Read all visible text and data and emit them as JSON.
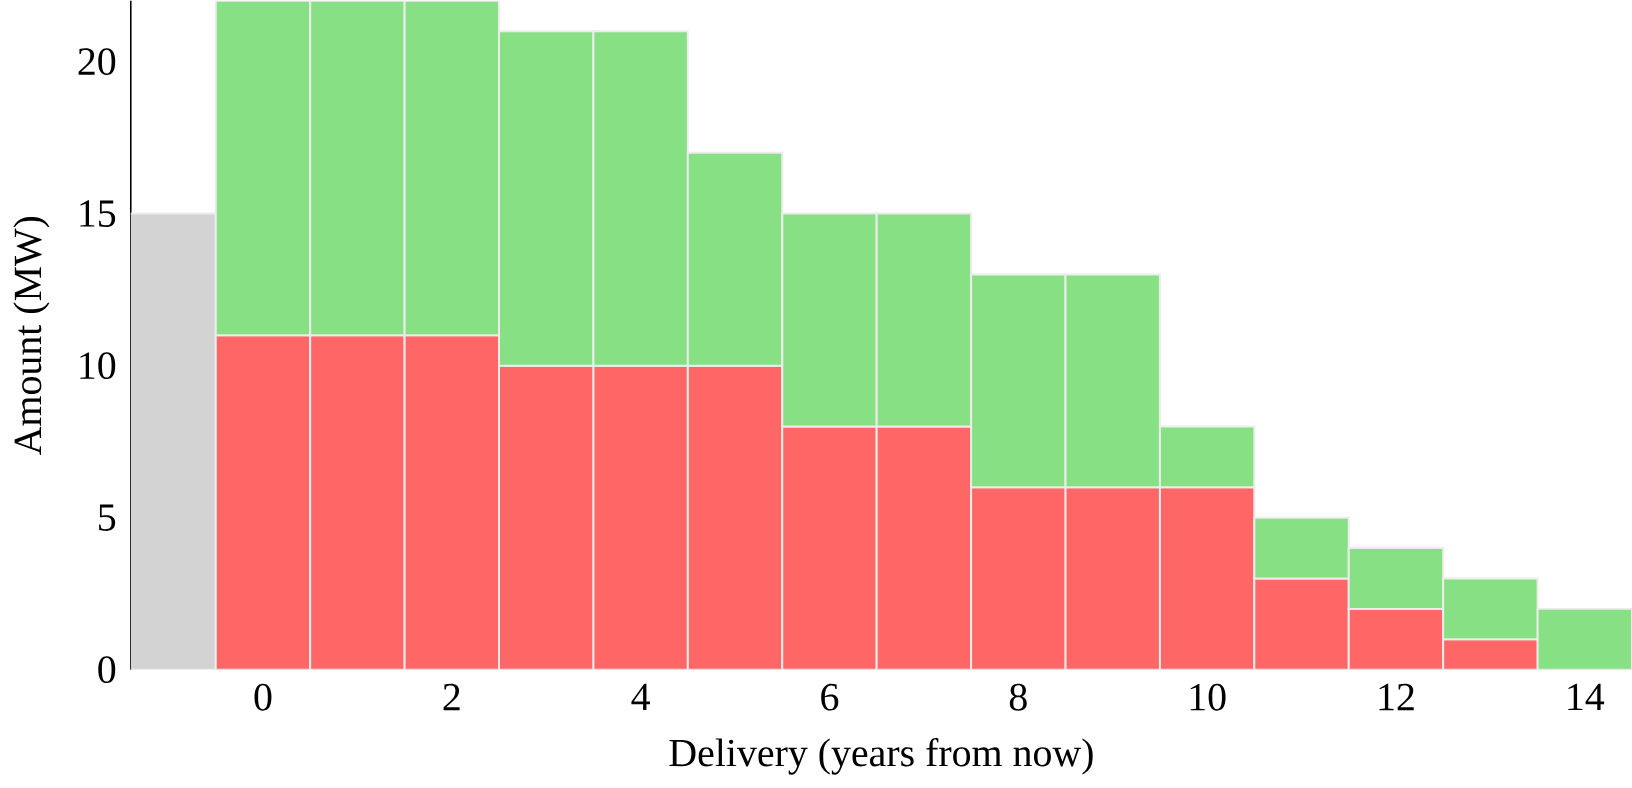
{
  "chart_data": {
    "type": "bar",
    "stacked": true,
    "xlabel": "Delivery (years from now)",
    "ylabel": "Amount (MW)",
    "x": [
      -1,
      0,
      1,
      2,
      3,
      4,
      5,
      6,
      7,
      8,
      9,
      10,
      11,
      12,
      13,
      14
    ],
    "series": [
      {
        "color": "#d3d3d3",
        "values": [
          15,
          null,
          null,
          null,
          null,
          null,
          null,
          null,
          null,
          null,
          null,
          null,
          null,
          null,
          null,
          null
        ]
      },
      {
        "color": "#ff6666",
        "values": [
          null,
          11,
          11,
          11,
          10,
          10,
          10,
          8,
          8,
          6,
          6,
          6,
          3,
          2,
          1,
          0
        ]
      },
      {
        "color": "#88e085",
        "values": [
          null,
          11,
          11,
          11,
          11,
          11,
          7,
          7,
          7,
          7,
          7,
          2,
          2,
          2,
          2,
          2
        ]
      }
    ],
    "xlim": [
      -1.4,
      14.5
    ],
    "ylim": [
      0,
      22
    ],
    "xticks": [
      0,
      2,
      4,
      6,
      8,
      10,
      12,
      14
    ],
    "yticks": [
      0,
      5,
      10,
      15,
      20
    ],
    "grid": false
  }
}
